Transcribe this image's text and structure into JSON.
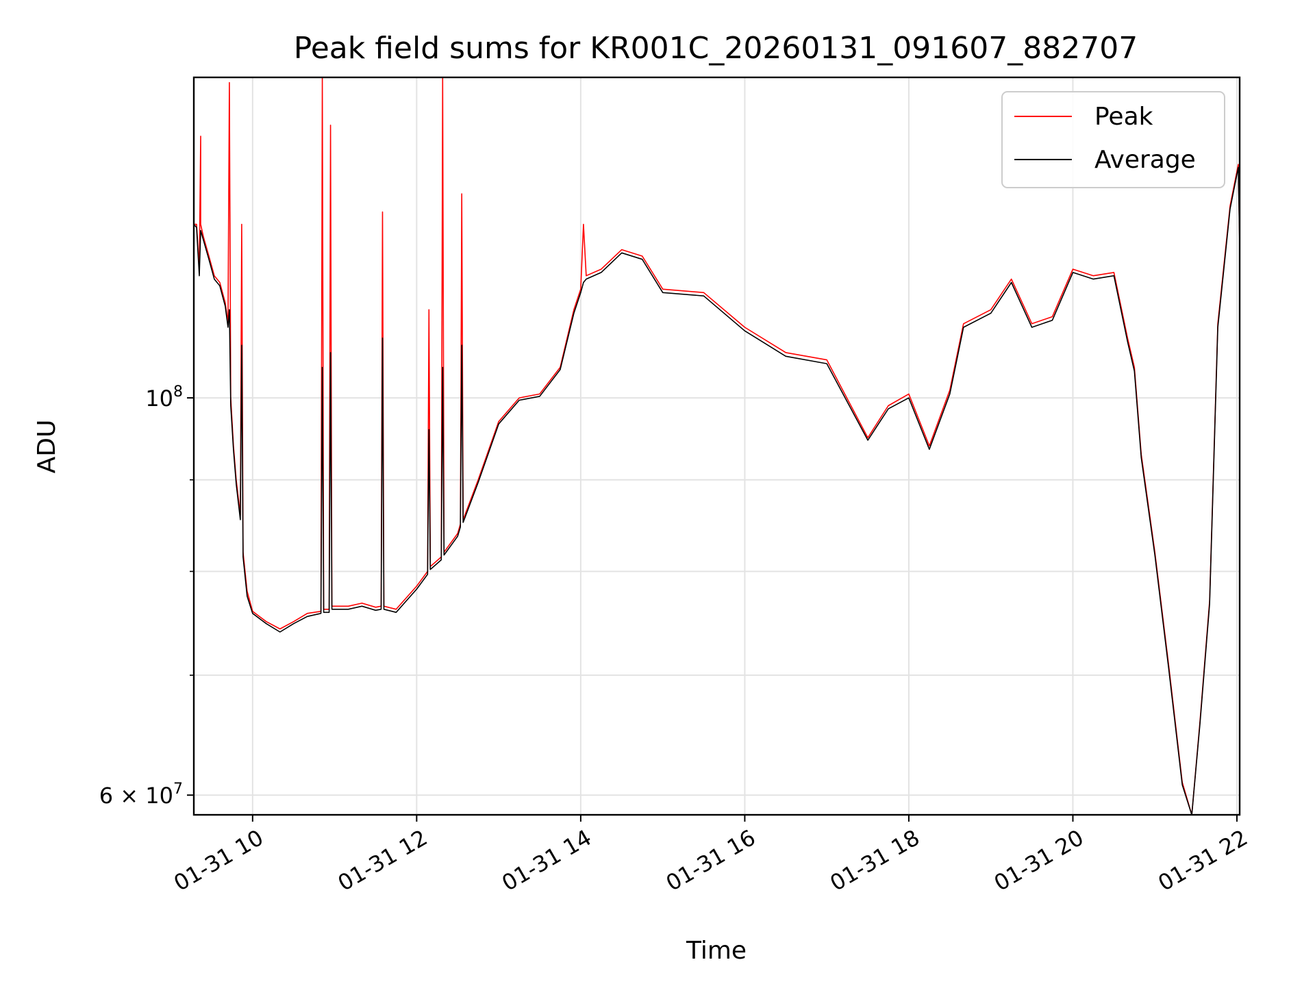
{
  "chart_data": {
    "type": "line",
    "title": "Peak field sums for KR001C_20260131_091607_882707",
    "xlabel": "Time",
    "ylabel": "ADU",
    "yscale": "log",
    "grid": true,
    "legend_position": "top-right",
    "xlim": [
      "2026-01-31 09:17",
      "2026-01-31 22:02"
    ],
    "ylim": [
      58500000,
      151000000
    ],
    "x_ticks": [
      {
        "value": "2026-01-31 10:00",
        "label": "01-31 10"
      },
      {
        "value": "2026-01-31 12:00",
        "label": "01-31 12"
      },
      {
        "value": "2026-01-31 14:00",
        "label": "01-31 14"
      },
      {
        "value": "2026-01-31 16:00",
        "label": "01-31 16"
      },
      {
        "value": "2026-01-31 18:00",
        "label": "01-31 18"
      },
      {
        "value": "2026-01-31 20:00",
        "label": "01-31 20"
      },
      {
        "value": "2026-01-31 22:00",
        "label": "01-31 22"
      }
    ],
    "y_major_ticks": [
      {
        "value": 60000000,
        "label_mantissa": "6",
        "label_base": "10",
        "label_exp": "7",
        "times": "×"
      },
      {
        "value": 100000000,
        "label_base": "10",
        "label_exp": "8"
      }
    ],
    "y_minor_ticks": [
      70000000,
      80000000,
      90000000
    ],
    "series": [
      {
        "name": "Peak",
        "color": "#ff0000",
        "points": [
          [
            "2026-01-31 09:17",
            125000000
          ],
          [
            "2026-01-31 09:19",
            125000000
          ],
          [
            "2026-01-31 09:21",
            118000000
          ],
          [
            "2026-01-31 09:22",
            140000000
          ],
          [
            "2026-01-31 09:22",
            125000000
          ],
          [
            "2026-01-31 09:24",
            123000000
          ],
          [
            "2026-01-31 09:28",
            120000000
          ],
          [
            "2026-01-31 09:32",
            117000000
          ],
          [
            "2026-01-31 09:36",
            116000000
          ],
          [
            "2026-01-31 09:40",
            113000000
          ],
          [
            "2026-01-31 09:42",
            110000000
          ],
          [
            "2026-01-31 09:43",
            150000000
          ],
          [
            "2026-01-31 09:44",
            100000000
          ],
          [
            "2026-01-31 09:46",
            94000000
          ],
          [
            "2026-01-31 09:48",
            90000000
          ],
          [
            "2026-01-31 09:51",
            86000000
          ],
          [
            "2026-01-31 09:52",
            125000000
          ],
          [
            "2026-01-31 09:53",
            82000000
          ],
          [
            "2026-01-31 09:56",
            78000000
          ],
          [
            "2026-01-31 10:00",
            76000000
          ],
          [
            "2026-01-31 10:10",
            75000000
          ],
          [
            "2026-01-31 10:20",
            74300000
          ],
          [
            "2026-01-31 10:30",
            75000000
          ],
          [
            "2026-01-31 10:40",
            75800000
          ],
          [
            "2026-01-31 10:50",
            76000000
          ],
          [
            "2026-01-31 10:51",
            151000000
          ],
          [
            "2026-01-31 10:52",
            76200000
          ],
          [
            "2026-01-31 10:56",
            76200000
          ],
          [
            "2026-01-31 10:57",
            142000000
          ],
          [
            "2026-01-31 10:58",
            76500000
          ],
          [
            "2026-01-31 11:10",
            76500000
          ],
          [
            "2026-01-31 11:20",
            76800000
          ],
          [
            "2026-01-31 11:30",
            76400000
          ],
          [
            "2026-01-31 11:34",
            76500000
          ],
          [
            "2026-01-31 11:35",
            127000000
          ],
          [
            "2026-01-31 11:36",
            76500000
          ],
          [
            "2026-01-31 11:45",
            76200000
          ],
          [
            "2026-01-31 12:00",
            78500000
          ],
          [
            "2026-01-31 12:08",
            80000000
          ],
          [
            "2026-01-31 12:09",
            112000000
          ],
          [
            "2026-01-31 12:10",
            80500000
          ],
          [
            "2026-01-31 12:18",
            81500000
          ],
          [
            "2026-01-31 12:19",
            151000000
          ],
          [
            "2026-01-31 12:20",
            82000000
          ],
          [
            "2026-01-31 12:30",
            84000000
          ],
          [
            "2026-01-31 12:32",
            85000000
          ],
          [
            "2026-01-31 12:33",
            130000000
          ],
          [
            "2026-01-31 12:34",
            85500000
          ],
          [
            "2026-01-31 12:45",
            90000000
          ],
          [
            "2026-01-31 13:00",
            97000000
          ],
          [
            "2026-01-31 13:15",
            100000000
          ],
          [
            "2026-01-31 13:30",
            100500000
          ],
          [
            "2026-01-31 13:45",
            104000000
          ],
          [
            "2026-01-31 13:55",
            112000000
          ],
          [
            "2026-01-31 14:00",
            115000000
          ],
          [
            "2026-01-31 14:02",
            125000000
          ],
          [
            "2026-01-31 14:04",
            117000000
          ],
          [
            "2026-01-31 14:15",
            118000000
          ],
          [
            "2026-01-31 14:30",
            121000000
          ],
          [
            "2026-01-31 14:45",
            120000000
          ],
          [
            "2026-01-31 15:00",
            115000000
          ],
          [
            "2026-01-31 15:30",
            114500000
          ],
          [
            "2026-01-31 16:00",
            109500000
          ],
          [
            "2026-01-31 16:30",
            106000000
          ],
          [
            "2026-01-31 17:00",
            105000000
          ],
          [
            "2026-01-31 17:30",
            95000000
          ],
          [
            "2026-01-31 17:45",
            99000000
          ],
          [
            "2026-01-31 18:00",
            100500000
          ],
          [
            "2026-01-31 18:15",
            94000000
          ],
          [
            "2026-01-31 18:30",
            101000000
          ],
          [
            "2026-01-31 18:40",
            110000000
          ],
          [
            "2026-01-31 19:00",
            112000000
          ],
          [
            "2026-01-31 19:15",
            116500000
          ],
          [
            "2026-01-31 19:30",
            110000000
          ],
          [
            "2026-01-31 19:45",
            111000000
          ],
          [
            "2026-01-31 20:00",
            118000000
          ],
          [
            "2026-01-31 20:15",
            117000000
          ],
          [
            "2026-01-31 20:30",
            117500000
          ],
          [
            "2026-01-31 20:40",
            108000000
          ],
          [
            "2026-01-31 20:45",
            104000000
          ],
          [
            "2026-01-31 20:50",
            93000000
          ],
          [
            "2026-01-31 21:00",
            82000000
          ],
          [
            "2026-01-31 21:10",
            71000000
          ],
          [
            "2026-01-31 21:20",
            61000000
          ],
          [
            "2026-01-31 21:27",
            58500000
          ],
          [
            "2026-01-31 21:33",
            66000000
          ],
          [
            "2026-01-31 21:40",
            77000000
          ],
          [
            "2026-01-31 21:46",
            110000000
          ],
          [
            "2026-01-31 21:55",
            128000000
          ],
          [
            "2026-01-31 22:01",
            135000000
          ],
          [
            "2026-01-31 22:02",
            122000000
          ]
        ]
      },
      {
        "name": "Average",
        "color": "#000000",
        "points": [
          [
            "2026-01-31 09:17",
            125000000
          ],
          [
            "2026-01-31 09:19",
            124500000
          ],
          [
            "2026-01-31 09:21",
            117000000
          ],
          [
            "2026-01-31 09:22",
            124000000
          ],
          [
            "2026-01-31 09:24",
            122500000
          ],
          [
            "2026-01-31 09:28",
            119500000
          ],
          [
            "2026-01-31 09:32",
            116500000
          ],
          [
            "2026-01-31 09:36",
            115500000
          ],
          [
            "2026-01-31 09:40",
            112500000
          ],
          [
            "2026-01-31 09:42",
            109500000
          ],
          [
            "2026-01-31 09:43",
            112000000
          ],
          [
            "2026-01-31 09:44",
            99000000
          ],
          [
            "2026-01-31 09:46",
            93500000
          ],
          [
            "2026-01-31 09:48",
            89500000
          ],
          [
            "2026-01-31 09:51",
            85500000
          ],
          [
            "2026-01-31 09:52",
            107000000
          ],
          [
            "2026-01-31 09:53",
            81500000
          ],
          [
            "2026-01-31 09:56",
            77500000
          ],
          [
            "2026-01-31 10:00",
            75800000
          ],
          [
            "2026-01-31 10:10",
            74800000
          ],
          [
            "2026-01-31 10:20",
            74000000
          ],
          [
            "2026-01-31 10:30",
            74800000
          ],
          [
            "2026-01-31 10:40",
            75500000
          ],
          [
            "2026-01-31 10:50",
            75800000
          ],
          [
            "2026-01-31 10:51",
            104000000
          ],
          [
            "2026-01-31 10:52",
            75900000
          ],
          [
            "2026-01-31 10:56",
            75900000
          ],
          [
            "2026-01-31 10:57",
            106000000
          ],
          [
            "2026-01-31 10:58",
            76200000
          ],
          [
            "2026-01-31 11:10",
            76200000
          ],
          [
            "2026-01-31 11:20",
            76500000
          ],
          [
            "2026-01-31 11:30",
            76100000
          ],
          [
            "2026-01-31 11:34",
            76200000
          ],
          [
            "2026-01-31 11:35",
            108000000
          ],
          [
            "2026-01-31 11:36",
            76200000
          ],
          [
            "2026-01-31 11:45",
            75900000
          ],
          [
            "2026-01-31 12:00",
            78200000
          ],
          [
            "2026-01-31 12:08",
            79700000
          ],
          [
            "2026-01-31 12:09",
            96000000
          ],
          [
            "2026-01-31 12:10",
            80200000
          ],
          [
            "2026-01-31 12:18",
            81200000
          ],
          [
            "2026-01-31 12:19",
            104000000
          ],
          [
            "2026-01-31 12:20",
            81700000
          ],
          [
            "2026-01-31 12:30",
            83700000
          ],
          [
            "2026-01-31 12:32",
            84700000
          ],
          [
            "2026-01-31 12:33",
            107000000
          ],
          [
            "2026-01-31 12:34",
            85200000
          ],
          [
            "2026-01-31 12:45",
            89700000
          ],
          [
            "2026-01-31 13:00",
            96700000
          ],
          [
            "2026-01-31 13:15",
            99700000
          ],
          [
            "2026-01-31 13:30",
            100200000
          ],
          [
            "2026-01-31 13:45",
            103700000
          ],
          [
            "2026-01-31 13:55",
            111500000
          ],
          [
            "2026-01-31 14:00",
            114500000
          ],
          [
            "2026-01-31 14:02",
            116000000
          ],
          [
            "2026-01-31 14:04",
            116500000
          ],
          [
            "2026-01-31 14:15",
            117500000
          ],
          [
            "2026-01-31 14:30",
            120500000
          ],
          [
            "2026-01-31 14:45",
            119500000
          ],
          [
            "2026-01-31 15:00",
            114500000
          ],
          [
            "2026-01-31 15:30",
            114000000
          ],
          [
            "2026-01-31 16:00",
            109000000
          ],
          [
            "2026-01-31 16:30",
            105500000
          ],
          [
            "2026-01-31 17:00",
            104500000
          ],
          [
            "2026-01-31 17:30",
            94700000
          ],
          [
            "2026-01-31 17:45",
            98600000
          ],
          [
            "2026-01-31 18:00",
            100000000
          ],
          [
            "2026-01-31 18:15",
            93600000
          ],
          [
            "2026-01-31 18:30",
            100500000
          ],
          [
            "2026-01-31 18:40",
            109500000
          ],
          [
            "2026-01-31 19:00",
            111500000
          ],
          [
            "2026-01-31 19:15",
            116000000
          ],
          [
            "2026-01-31 19:30",
            109500000
          ],
          [
            "2026-01-31 19:45",
            110500000
          ],
          [
            "2026-01-31 20:00",
            117500000
          ],
          [
            "2026-01-31 20:15",
            116500000
          ],
          [
            "2026-01-31 20:30",
            117000000
          ],
          [
            "2026-01-31 20:40",
            107500000
          ],
          [
            "2026-01-31 20:45",
            103500000
          ],
          [
            "2026-01-31 20:50",
            92600000
          ],
          [
            "2026-01-31 21:00",
            81700000
          ],
          [
            "2026-01-31 21:10",
            70700000
          ],
          [
            "2026-01-31 21:20",
            60800000
          ],
          [
            "2026-01-31 21:27",
            58500000
          ],
          [
            "2026-01-31 21:33",
            65800000
          ],
          [
            "2026-01-31 21:40",
            76700000
          ],
          [
            "2026-01-31 21:46",
            109500000
          ],
          [
            "2026-01-31 21:55",
            127500000
          ],
          [
            "2026-01-31 22:01",
            134500000
          ],
          [
            "2026-01-31 22:02",
            121500000
          ]
        ]
      }
    ]
  }
}
